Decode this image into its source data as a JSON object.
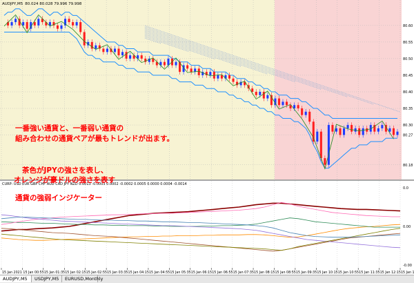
{
  "chart_data": [
    {
      "type": "line",
      "pane": "price",
      "title": "AUDJPY,M5",
      "ohlc_text": "80.024 80.028 79.996 79.998",
      "yticks": [
        "80.60",
        "80.55",
        "80.50",
        "80.45",
        "80.40",
        "80.35",
        "80.30",
        "80.27",
        "80.18"
      ],
      "ylim": [
        80.14,
        80.66
      ],
      "series": [
        {
          "role": "price",
          "color": "#1e3cff",
          "values": [
            80.61,
            80.6,
            80.61,
            80.62,
            80.6,
            80.61,
            80.59,
            80.61,
            80.6,
            80.62,
            80.61,
            80.6,
            80.61,
            80.6,
            80.59,
            80.6,
            80.62,
            80.61,
            80.6,
            80.61,
            80.58,
            80.54,
            80.55,
            80.53,
            80.54,
            80.53,
            80.52,
            80.53,
            80.52,
            80.53,
            80.51,
            80.52,
            80.5,
            80.51,
            80.5,
            80.51,
            80.5,
            80.49,
            80.5,
            80.49,
            80.48,
            80.49,
            80.48,
            80.5,
            80.48,
            80.49,
            80.46,
            80.48,
            80.47,
            80.46,
            80.47,
            80.45,
            80.46,
            80.45,
            80.46,
            80.44,
            80.45,
            80.44,
            80.45,
            80.44,
            80.43,
            80.42,
            80.43,
            80.42,
            80.41,
            80.4,
            80.39,
            80.4,
            80.38,
            80.39,
            80.36,
            80.38,
            80.36,
            80.37,
            80.36,
            80.35,
            80.36,
            80.35,
            80.33,
            80.34,
            80.31,
            80.25,
            80.28,
            80.2,
            80.18,
            80.3,
            80.28,
            80.29,
            80.27,
            80.29,
            80.3,
            80.28,
            80.29,
            80.27,
            80.29,
            80.28,
            80.3,
            80.28,
            80.29,
            80.3,
            80.28,
            80.29,
            80.27,
            80.28
          ]
        },
        {
          "role": "band-upper",
          "color": "#1e90ff",
          "values": [
            80.63,
            80.64,
            80.64,
            80.65,
            80.65,
            80.64,
            80.63,
            80.63,
            80.64,
            80.65,
            80.65,
            80.64,
            80.63,
            80.64,
            80.64,
            80.63,
            80.64,
            80.64,
            80.63,
            80.63,
            80.62,
            80.61,
            80.6,
            80.59,
            80.58,
            80.57,
            80.56,
            80.55,
            80.55,
            80.55,
            80.54,
            80.54,
            80.53,
            80.53,
            80.53,
            80.52,
            80.52,
            80.52,
            80.52,
            80.51,
            80.51,
            80.51,
            80.51,
            80.51,
            80.5,
            80.5,
            80.49,
            80.49,
            80.49,
            80.48,
            80.48,
            80.48,
            80.47,
            80.47,
            80.47,
            80.46,
            80.46,
            80.46,
            80.46,
            80.45,
            80.45,
            80.44,
            80.44,
            80.44,
            80.43,
            80.43,
            80.42,
            80.42,
            80.41,
            80.41,
            80.4,
            80.4,
            80.39,
            80.39,
            80.39,
            80.38,
            80.38,
            80.38,
            80.37,
            80.37,
            80.36,
            80.35,
            80.35,
            80.34,
            80.33,
            80.33,
            80.32,
            80.32,
            80.32,
            80.32,
            80.32,
            80.32,
            80.32,
            80.32,
            80.32,
            80.32,
            80.32,
            80.32,
            80.32,
            80.32,
            80.32,
            80.32,
            80.32,
            80.32
          ]
        },
        {
          "role": "band-lower",
          "color": "#1e90ff",
          "values": [
            80.58,
            80.58,
            80.58,
            80.58,
            80.58,
            80.58,
            80.58,
            80.58,
            80.58,
            80.58,
            80.58,
            80.58,
            80.58,
            80.58,
            80.58,
            80.58,
            80.58,
            80.58,
            80.57,
            80.56,
            80.54,
            80.52,
            80.51,
            80.51,
            80.5,
            80.5,
            80.49,
            80.49,
            80.49,
            80.49,
            80.48,
            80.48,
            80.47,
            80.47,
            80.47,
            80.46,
            80.46,
            80.46,
            80.46,
            80.45,
            80.45,
            80.45,
            80.45,
            80.45,
            80.44,
            80.44,
            80.43,
            80.43,
            80.43,
            80.43,
            80.42,
            80.42,
            80.42,
            80.41,
            80.41,
            80.41,
            80.4,
            80.4,
            80.4,
            80.39,
            80.39,
            80.38,
            80.38,
            80.37,
            80.37,
            80.36,
            80.36,
            80.35,
            80.35,
            80.34,
            80.34,
            80.33,
            80.33,
            80.32,
            80.32,
            80.32,
            80.31,
            80.31,
            80.3,
            80.29,
            80.27,
            80.24,
            80.22,
            80.19,
            80.17,
            80.17,
            80.18,
            80.19,
            80.2,
            80.21,
            80.22,
            80.23,
            80.23,
            80.24,
            80.24,
            80.24,
            80.25,
            80.25,
            80.25,
            80.25,
            80.26,
            80.26,
            80.26,
            80.26
          ]
        }
      ]
    },
    {
      "type": "line",
      "pane": "indicator",
      "legend_text": "CURP: USD EUR GBP CHF AUD CAD JPY NZD 0.0013 -0.0003 0.0002 -0.0002 0.0005 0.0000 0.0004 -0.0014",
      "yticks": [
        "0.0",
        "0.00",
        "-0.00"
      ],
      "ylim": [
        -1.0,
        1.0
      ],
      "series": [
        {
          "name": "USD",
          "color": "#8b0000",
          "values": [
            -0.12,
            -0.1,
            -0.08,
            -0.08,
            -0.06,
            -0.05,
            -0.04,
            -0.02,
            0.0,
            0.04,
            0.08,
            0.12,
            0.16,
            0.2,
            0.24,
            0.28,
            0.3,
            0.32,
            0.34,
            0.35,
            0.36,
            0.37,
            0.38,
            0.4,
            0.42,
            0.44,
            0.46,
            0.48,
            0.5,
            0.53,
            0.56,
            0.58,
            0.6,
            0.6,
            0.58,
            0.56,
            0.54,
            0.52,
            0.5,
            0.48,
            0.46,
            0.45,
            0.44,
            0.44,
            0.43,
            0.42,
            0.41,
            0.4
          ]
        },
        {
          "name": "EUR",
          "color": "#ff8c00",
          "values": [
            -0.3,
            -0.32,
            -0.34,
            -0.35,
            -0.36,
            -0.36,
            -0.35,
            -0.34,
            -0.33,
            -0.33,
            -0.32,
            -0.31,
            -0.3,
            -0.29,
            -0.28,
            -0.27,
            -0.27,
            -0.26,
            -0.26,
            -0.25,
            -0.25,
            -0.24,
            -0.24,
            -0.24,
            -0.23,
            -0.23,
            -0.22,
            -0.22,
            -0.22,
            -0.21,
            -0.21,
            -0.22,
            -0.24,
            -0.26,
            -0.28,
            -0.27,
            -0.24,
            -0.2,
            -0.16,
            -0.12,
            -0.08,
            -0.05,
            -0.03,
            -0.01,
            0.0,
            0.02,
            0.04,
            0.05
          ]
        },
        {
          "name": "GBP",
          "color": "#a0522d",
          "values": [
            -0.05,
            -0.06,
            -0.08,
            -0.1,
            -0.12,
            -0.14,
            -0.16,
            -0.17,
            -0.18,
            -0.2,
            -0.22,
            -0.24,
            -0.25,
            -0.26,
            -0.28,
            -0.3,
            -0.32,
            -0.34,
            -0.36,
            -0.38,
            -0.4,
            -0.42,
            -0.44,
            -0.46,
            -0.48,
            -0.5,
            -0.52,
            -0.54,
            -0.56,
            -0.58,
            -0.6,
            -0.62,
            -0.64,
            -0.62,
            -0.58,
            -0.54,
            -0.5,
            -0.46,
            -0.42,
            -0.38,
            -0.34,
            -0.3,
            -0.28,
            -0.26,
            -0.24,
            -0.22,
            -0.2,
            -0.18
          ]
        },
        {
          "name": "CHF",
          "color": "#2e8b57",
          "values": [
            0.12,
            0.11,
            0.1,
            0.1,
            0.09,
            0.08,
            0.08,
            0.07,
            0.06,
            0.05,
            0.05,
            0.04,
            0.04,
            0.03,
            0.03,
            0.02,
            0.02,
            0.02,
            0.01,
            0.01,
            0.0,
            0.0,
            0.0,
            0.0,
            0.01,
            0.01,
            0.02,
            0.02,
            0.03,
            0.04,
            0.06,
            0.1,
            0.14,
            0.18,
            0.22,
            0.2,
            0.16,
            0.12,
            0.1,
            0.08,
            0.06,
            0.04,
            0.02,
            0.0,
            -0.02,
            -0.02,
            -0.02,
            -0.02
          ]
        },
        {
          "name": "AUD",
          "color": "#ff69b4",
          "values": [
            0.05,
            0.08,
            0.12,
            0.15,
            0.18,
            0.2,
            0.22,
            0.24,
            0.25,
            0.26,
            0.27,
            0.28,
            0.29,
            0.3,
            0.3,
            0.31,
            0.32,
            0.33,
            0.33,
            0.34,
            0.34,
            0.35,
            0.36,
            0.37,
            0.38,
            0.39,
            0.4,
            0.41,
            0.42,
            0.44,
            0.46,
            0.5,
            0.56,
            0.62,
            0.58,
            0.52,
            0.48,
            0.44,
            0.4,
            0.36,
            0.34,
            0.32,
            0.3,
            0.28,
            0.27,
            0.26,
            0.25,
            0.25
          ]
        },
        {
          "name": "CAD",
          "color": "#9370db",
          "values": [
            0.3,
            0.28,
            0.25,
            0.22,
            0.2,
            0.18,
            0.16,
            0.14,
            0.13,
            0.12,
            0.11,
            0.1,
            0.09,
            0.08,
            0.07,
            0.06,
            0.05,
            0.04,
            0.03,
            0.02,
            0.02,
            0.01,
            0.0,
            -0.01,
            -0.02,
            -0.03,
            -0.04,
            -0.05,
            -0.06,
            -0.08,
            -0.1,
            -0.14,
            -0.18,
            -0.22,
            -0.26,
            -0.3,
            -0.34,
            -0.36,
            -0.38,
            -0.4,
            -0.42,
            -0.44,
            -0.46,
            -0.48,
            -0.5,
            -0.52,
            -0.54,
            -0.55
          ]
        },
        {
          "name": "JPY",
          "color": "#808000",
          "values": [
            -0.2,
            -0.22,
            -0.24,
            -0.26,
            -0.28,
            -0.3,
            -0.32,
            -0.34,
            -0.35,
            -0.36,
            -0.37,
            -0.38,
            -0.39,
            -0.4,
            -0.41,
            -0.42,
            -0.43,
            -0.44,
            -0.45,
            -0.46,
            -0.47,
            -0.48,
            -0.49,
            -0.5,
            -0.51,
            -0.52,
            -0.53,
            -0.54,
            -0.55,
            -0.56,
            -0.57,
            -0.58,
            -0.6,
            -0.62,
            -0.58,
            -0.52,
            -0.48,
            -0.44,
            -0.4,
            -0.36,
            -0.32,
            -0.28,
            -0.24,
            -0.2,
            -0.16,
            -0.12,
            -0.08,
            -0.05
          ]
        },
        {
          "name": "NZD",
          "color": "#4682b4",
          "values": [
            0.2,
            0.22,
            0.24,
            0.24,
            0.23,
            0.22,
            0.21,
            0.2,
            0.19,
            0.18,
            0.18,
            0.17,
            0.16,
            0.16,
            0.15,
            0.15,
            0.14,
            0.14,
            0.13,
            0.12,
            0.12,
            0.11,
            0.1,
            0.1,
            0.09,
            0.08,
            0.07,
            0.06,
            0.05,
            0.04,
            0.02,
            0.0,
            -0.04,
            -0.1,
            -0.16,
            -0.2,
            -0.24,
            -0.26,
            -0.27,
            -0.28,
            -0.28,
            -0.28,
            -0.27,
            -0.26,
            -0.25,
            -0.24,
            -0.23,
            -0.22
          ]
        }
      ]
    }
  ],
  "xticks": [
    "15 Jan 2021",
    "15 Jan 00:55",
    "15 Jan 01:35",
    "15 Jan 02:15",
    "15 Jan 02:55",
    "15 Jan 03:35",
    "15 Jan 04:15",
    "15 Jan 04:55",
    "15 Jan 05:35",
    "15 Jan 06:15",
    "15 Jan 06:55",
    "15 Jan 07:35",
    "15 Jan 08:15",
    "15 Jan 08:55",
    "15 Jan 09:35",
    "15 Jan 10:15",
    "15 Jan 10:55",
    "15 Jan 11:35",
    "15 Jan 12:15",
    "15 Jan 12:"
  ],
  "annotations": {
    "line1": "一番強い通貨と、一番弱い通貨の",
    "line2": "組み合わせの通貨ペアが最もトレンドが出ます。",
    "line3": "茶色がJPYの強さを表し、",
    "line4": "オレンジが豪ドルの強さを表す",
    "indicator_label": "通貨の強弱インジケーター"
  },
  "tabs": [
    "AUDJPY,M5",
    "USDJPY,M5",
    "EURUSD,Monthly"
  ],
  "colors": {
    "bg_yellow": "#f7f3d3",
    "bg_pink": "#f9d4d4",
    "annotation_red": "#ff0000",
    "bull_candle": "#1e3cff",
    "bear_candle": "#ff1e1e",
    "zigzag": "#228b22",
    "cloud": "#9fb4d4"
  }
}
